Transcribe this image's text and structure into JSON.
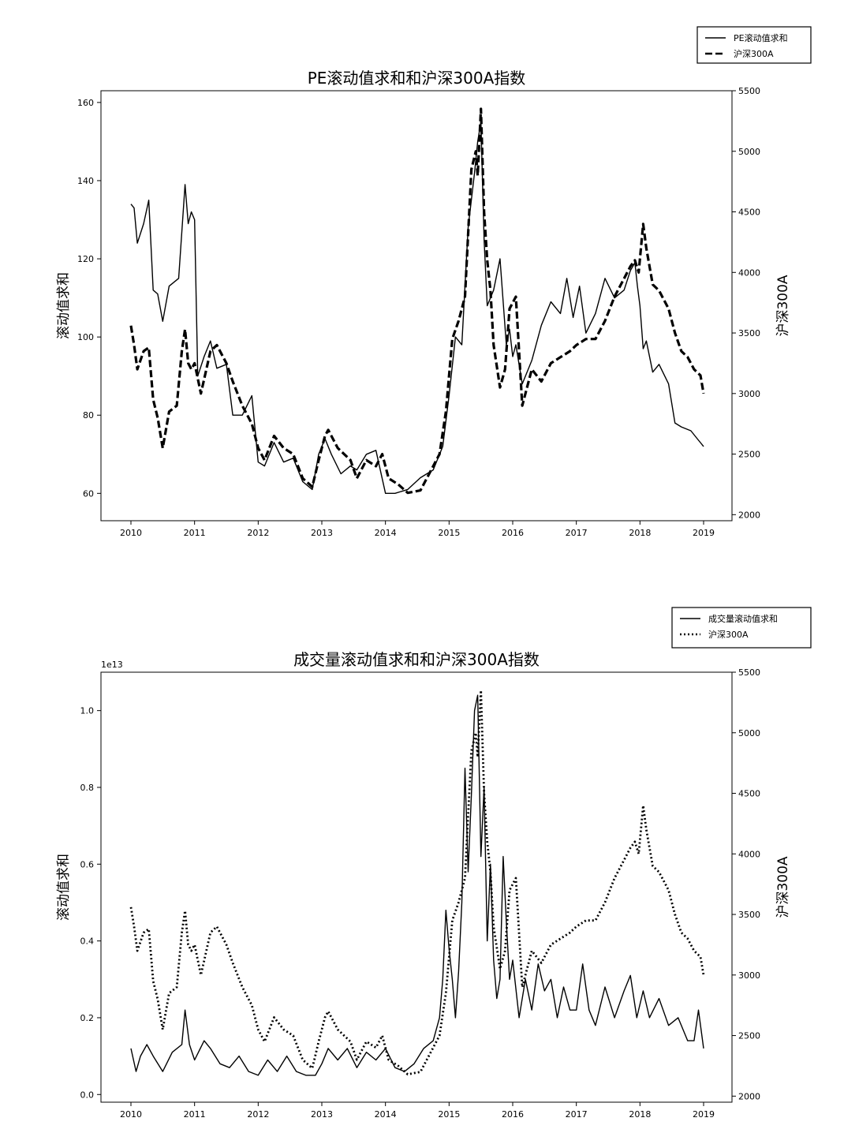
{
  "chart_data": [
    {
      "type": "line",
      "title": "PE滚动值求和和沪深300A指数",
      "ylabel": "滚动值求和",
      "ylabel_right": "沪深300A",
      "xlim": [
        2010,
        2019
      ],
      "ylim": [
        53,
        163
      ],
      "ylim_right": [
        1950,
        5500
      ],
      "x_ticks": [
        "2010",
        "2011",
        "2012",
        "2013",
        "2014",
        "2015",
        "2016",
        "2017",
        "2018",
        "2019"
      ],
      "y_ticks": [
        "60",
        "80",
        "100",
        "120",
        "140",
        "160"
      ],
      "y_ticks_right": [
        "2000",
        "2500",
        "3000",
        "3500",
        "4000",
        "4500",
        "5000",
        "5500"
      ],
      "legend_position": "top-right, above plot",
      "grid": false,
      "series": [
        {
          "name": "PE滚动值求和",
          "axis": "left",
          "style": "solid",
          "x": [
            2010.0,
            2010.05,
            2010.1,
            2010.2,
            2010.28,
            2010.35,
            2010.42,
            2010.5,
            2010.6,
            2010.75,
            2010.85,
            2010.9,
            2010.95,
            2011.0,
            2011.05,
            2011.15,
            2011.25,
            2011.35,
            2011.5,
            2011.6,
            2011.75,
            2011.9,
            2012.0,
            2012.1,
            2012.25,
            2012.4,
            2012.55,
            2012.7,
            2012.85,
            2012.95,
            2013.05,
            2013.15,
            2013.3,
            2013.45,
            2013.55,
            2013.7,
            2013.85,
            2014.0,
            2014.15,
            2014.35,
            2014.55,
            2014.75,
            2014.9,
            2015.0,
            2015.1,
            2015.2,
            2015.3,
            2015.4,
            2015.45,
            2015.5,
            2015.55,
            2015.6,
            2015.7,
            2015.8,
            2015.9,
            2015.95,
            2016.0,
            2016.05,
            2016.15,
            2016.3,
            2016.45,
            2016.6,
            2016.75,
            2016.85,
            2016.95,
            2017.05,
            2017.15,
            2017.3,
            2017.45,
            2017.6,
            2017.75,
            2017.85,
            2017.92,
            2017.96,
            2018.0,
            2018.05,
            2018.1,
            2018.2,
            2018.3,
            2018.45,
            2018.55,
            2018.65,
            2018.8,
            2018.9,
            2019.0
          ],
          "y": [
            134,
            133,
            124,
            129,
            135,
            112,
            111,
            104,
            113,
            115,
            139,
            129,
            132,
            130,
            90,
            95,
            99,
            92,
            93,
            80,
            80,
            85,
            68,
            67,
            73,
            68,
            69,
            63,
            61,
            70,
            74,
            70,
            65,
            67,
            66,
            70,
            71,
            60,
            60,
            61,
            64,
            66,
            72,
            85,
            100,
            98,
            128,
            142,
            150,
            155,
            125,
            108,
            112,
            120,
            98,
            102,
            95,
            98,
            88,
            94,
            103,
            109,
            106,
            115,
            105,
            113,
            101,
            106,
            115,
            110,
            112,
            117,
            119,
            113,
            108,
            97,
            99,
            91,
            93,
            88,
            78,
            77,
            76,
            74,
            72
          ]
        },
        {
          "name": "沪深300A",
          "axis": "right",
          "style": "dashed",
          "x": [
            2010.0,
            2010.05,
            2010.1,
            2010.2,
            2010.28,
            2010.35,
            2010.42,
            2010.5,
            2010.6,
            2010.72,
            2010.8,
            2010.85,
            2010.9,
            2010.95,
            2011.0,
            2011.1,
            2011.25,
            2011.35,
            2011.5,
            2011.6,
            2011.75,
            2011.9,
            2012.0,
            2012.1,
            2012.25,
            2012.4,
            2012.55,
            2012.7,
            2012.85,
            2012.95,
            2013.05,
            2013.1,
            2013.25,
            2013.45,
            2013.55,
            2013.7,
            2013.85,
            2013.95,
            2014.05,
            2014.2,
            2014.35,
            2014.55,
            2014.7,
            2014.85,
            2014.95,
            2015.05,
            2015.15,
            2015.25,
            2015.35,
            2015.42,
            2015.45,
            2015.5,
            2015.55,
            2015.6,
            2015.65,
            2015.7,
            2015.8,
            2015.88,
            2015.95,
            2016.05,
            2016.15,
            2016.3,
            2016.45,
            2016.6,
            2016.75,
            2016.9,
            2017.0,
            2017.15,
            2017.3,
            2017.45,
            2017.6,
            2017.75,
            2017.85,
            2017.92,
            2017.98,
            2018.05,
            2018.1,
            2018.2,
            2018.3,
            2018.45,
            2018.55,
            2018.65,
            2018.75,
            2018.85,
            2018.95,
            2019.0
          ],
          "y": [
            3560,
            3400,
            3200,
            3350,
            3380,
            2950,
            2800,
            2550,
            2850,
            2900,
            3350,
            3530,
            3250,
            3200,
            3250,
            3000,
            3350,
            3400,
            3250,
            3100,
            2900,
            2750,
            2550,
            2450,
            2650,
            2550,
            2500,
            2300,
            2230,
            2450,
            2650,
            2700,
            2550,
            2450,
            2300,
            2450,
            2400,
            2500,
            2300,
            2250,
            2180,
            2200,
            2350,
            2500,
            2850,
            3450,
            3600,
            3800,
            4850,
            5000,
            4800,
            5350,
            4500,
            4100,
            3850,
            3400,
            3050,
            3200,
            3700,
            3800,
            2900,
            3200,
            3100,
            3250,
            3300,
            3350,
            3400,
            3450,
            3450,
            3600,
            3800,
            3950,
            4050,
            4100,
            4000,
            4400,
            4200,
            3900,
            3850,
            3700,
            3500,
            3350,
            3300,
            3200,
            3150,
            3000
          ]
        }
      ]
    },
    {
      "type": "line",
      "title": "成交量滚动值求和和沪深300A指数",
      "ylabel": "滚动值求和",
      "ylabel_right": "沪深300A",
      "offset_text": "1e13",
      "xlim": [
        2010,
        2019
      ],
      "ylim": [
        -0.02,
        1.1
      ],
      "ylim_right": [
        1950,
        5500
      ],
      "x_ticks": [
        "2010",
        "2011",
        "2012",
        "2013",
        "2014",
        "2015",
        "2016",
        "2017",
        "2018",
        "2019"
      ],
      "y_ticks": [
        "0.0",
        "0.2",
        "0.4",
        "0.6",
        "0.8",
        "1.0"
      ],
      "y_ticks_right": [
        "2000",
        "2500",
        "3000",
        "3500",
        "4000",
        "4500",
        "5000",
        "5500"
      ],
      "legend_position": "top-right, above plot",
      "grid": false,
      "series": [
        {
          "name": "成交量滚动值求和",
          "axis": "left",
          "style": "solid",
          "x": [
            2010.0,
            2010.08,
            2010.15,
            2010.25,
            2010.35,
            2010.5,
            2010.65,
            2010.8,
            2010.85,
            2010.92,
            2011.0,
            2011.15,
            2011.25,
            2011.4,
            2011.55,
            2011.7,
            2011.85,
            2012.0,
            2012.15,
            2012.3,
            2012.45,
            2012.6,
            2012.75,
            2012.9,
            2013.0,
            2013.1,
            2013.25,
            2013.4,
            2013.55,
            2013.7,
            2013.85,
            2014.0,
            2014.15,
            2014.3,
            2014.45,
            2014.6,
            2014.75,
            2014.85,
            2014.9,
            2014.95,
            2015.0,
            2015.05,
            2015.1,
            2015.15,
            2015.2,
            2015.25,
            2015.3,
            2015.35,
            2015.4,
            2015.45,
            2015.5,
            2015.55,
            2015.6,
            2015.65,
            2015.7,
            2015.75,
            2015.8,
            2015.85,
            2015.9,
            2015.95,
            2016.0,
            2016.1,
            2016.2,
            2016.3,
            2016.4,
            2016.5,
            2016.6,
            2016.7,
            2016.8,
            2016.9,
            2017.0,
            2017.1,
            2017.2,
            2017.3,
            2017.45,
            2017.6,
            2017.75,
            2017.85,
            2017.95,
            2018.05,
            2018.15,
            2018.3,
            2018.45,
            2018.6,
            2018.75,
            2018.85,
            2018.92,
            2019.0
          ],
          "y": [
            0.12,
            0.06,
            0.1,
            0.13,
            0.1,
            0.06,
            0.11,
            0.13,
            0.22,
            0.13,
            0.09,
            0.14,
            0.12,
            0.08,
            0.07,
            0.1,
            0.06,
            0.05,
            0.09,
            0.06,
            0.1,
            0.06,
            0.05,
            0.05,
            0.08,
            0.12,
            0.09,
            0.12,
            0.07,
            0.11,
            0.09,
            0.12,
            0.07,
            0.06,
            0.08,
            0.12,
            0.14,
            0.2,
            0.3,
            0.48,
            0.38,
            0.3,
            0.2,
            0.32,
            0.5,
            0.85,
            0.58,
            0.78,
            1.0,
            1.04,
            0.62,
            0.8,
            0.4,
            0.6,
            0.35,
            0.25,
            0.3,
            0.62,
            0.45,
            0.3,
            0.35,
            0.2,
            0.3,
            0.22,
            0.34,
            0.27,
            0.3,
            0.2,
            0.28,
            0.22,
            0.22,
            0.34,
            0.22,
            0.18,
            0.28,
            0.2,
            0.27,
            0.31,
            0.2,
            0.27,
            0.2,
            0.25,
            0.18,
            0.2,
            0.14,
            0.14,
            0.22,
            0.12
          ]
        },
        {
          "name": "沪深300A",
          "axis": "right",
          "style": "dotted",
          "x": [
            2010.0,
            2010.05,
            2010.1,
            2010.2,
            2010.28,
            2010.35,
            2010.42,
            2010.5,
            2010.6,
            2010.72,
            2010.8,
            2010.85,
            2010.9,
            2010.95,
            2011.0,
            2011.1,
            2011.25,
            2011.35,
            2011.5,
            2011.6,
            2011.75,
            2011.9,
            2012.0,
            2012.1,
            2012.25,
            2012.4,
            2012.55,
            2012.7,
            2012.85,
            2012.95,
            2013.05,
            2013.1,
            2013.25,
            2013.45,
            2013.55,
            2013.7,
            2013.85,
            2013.95,
            2014.05,
            2014.2,
            2014.35,
            2014.55,
            2014.7,
            2014.85,
            2014.95,
            2015.05,
            2015.15,
            2015.25,
            2015.35,
            2015.42,
            2015.45,
            2015.5,
            2015.55,
            2015.6,
            2015.65,
            2015.7,
            2015.8,
            2015.88,
            2015.95,
            2016.05,
            2016.15,
            2016.3,
            2016.45,
            2016.6,
            2016.75,
            2016.9,
            2017.0,
            2017.15,
            2017.3,
            2017.45,
            2017.6,
            2017.75,
            2017.85,
            2017.92,
            2017.98,
            2018.05,
            2018.1,
            2018.2,
            2018.3,
            2018.45,
            2018.55,
            2018.65,
            2018.75,
            2018.85,
            2018.95,
            2019.0
          ],
          "y": [
            3560,
            3400,
            3200,
            3350,
            3380,
            2950,
            2800,
            2550,
            2850,
            2900,
            3350,
            3530,
            3250,
            3200,
            3250,
            3000,
            3350,
            3400,
            3250,
            3100,
            2900,
            2750,
            2550,
            2450,
            2650,
            2550,
            2500,
            2300,
            2230,
            2450,
            2650,
            2700,
            2550,
            2450,
            2300,
            2450,
            2400,
            2500,
            2300,
            2250,
            2180,
            2200,
            2350,
            2500,
            2850,
            3450,
            3600,
            3800,
            4850,
            5000,
            4800,
            5350,
            4500,
            4100,
            3850,
            3400,
            3050,
            3200,
            3700,
            3800,
            2900,
            3200,
            3100,
            3250,
            3300,
            3350,
            3400,
            3450,
            3450,
            3600,
            3800,
            3950,
            4050,
            4100,
            4000,
            4400,
            4200,
            3900,
            3850,
            3700,
            3500,
            3350,
            3300,
            3200,
            3150,
            3000
          ]
        }
      ]
    }
  ]
}
